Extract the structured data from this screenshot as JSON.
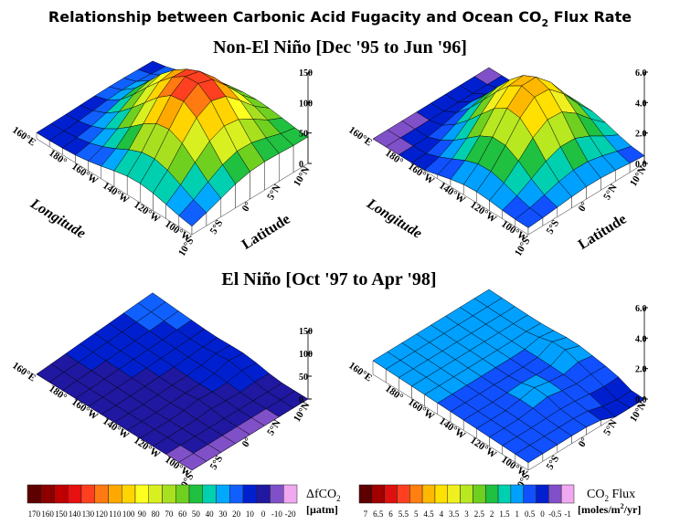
{
  "title": {
    "text": "Relationship between Carbonic Acid Fugacity and Ocean CO",
    "sub": "2",
    "end": " Flux Rate"
  },
  "subtitles": [
    "Non-El Niño  [Dec '95 to Jun '96]",
    "El Niño  [Oct '97 to Apr '98]"
  ],
  "longitude_ticks": [
    "160°E",
    "180°",
    "160°W",
    "140°W",
    "120°W",
    "100°W"
  ],
  "latitude_ticks": [
    "10°S",
    "5°S",
    "0°",
    "5°N",
    "10°N"
  ],
  "longitude_label": "Longitude",
  "latitude_label": "Latitude",
  "fco2_axis_ticks": [
    0,
    50,
    100,
    150
  ],
  "flux_axis_ticks": [
    {
      "value": 0,
      "label": "0.0"
    },
    {
      "value": 2,
      "label": "2.0"
    },
    {
      "value": 4,
      "label": "4.0"
    },
    {
      "value": 6,
      "label": "6.0"
    }
  ],
  "fco2_scale": {
    "labels": [
      170,
      160,
      150,
      140,
      130,
      120,
      110,
      100,
      90,
      80,
      70,
      60,
      50,
      40,
      30,
      20,
      10,
      0,
      -10,
      -20
    ],
    "colors": [
      "#5c0000",
      "#8c0000",
      "#c00000",
      "#e81010",
      "#ff4020",
      "#ff7a10",
      "#ffa800",
      "#ffd400",
      "#ffff20",
      "#d8f020",
      "#a8e020",
      "#70d020",
      "#20c040",
      "#00d0b0",
      "#00a8ff",
      "#1060ff",
      "#0020d0",
      "#2018a0",
      "#8050c8",
      "#f0a8f0"
    ],
    "title": "ΔfCO",
    "title_sub": "2",
    "unit": "[µatm]"
  },
  "flux_scale": {
    "labels": [
      7,
      6.5,
      6,
      5.5,
      5,
      4.5,
      4,
      3.5,
      3,
      2.5,
      2,
      1.5,
      1,
      0.5,
      0,
      -0.5,
      -1
    ],
    "colors": [
      "#5c0000",
      "#a00000",
      "#e01010",
      "#ff4020",
      "#ff8010",
      "#ffb800",
      "#ffe000",
      "#f0f020",
      "#b8e820",
      "#70d020",
      "#20c040",
      "#00d0b0",
      "#00a0ff",
      "#1050ff",
      "#0020d0",
      "#8050c8",
      "#f0a8f0"
    ],
    "title": "CO",
    "title_sub": "2",
    "title_end": "  Flux",
    "unit": "[moles/m",
    "unit_sup": "2",
    "unit_end": "/yr]"
  }
}
